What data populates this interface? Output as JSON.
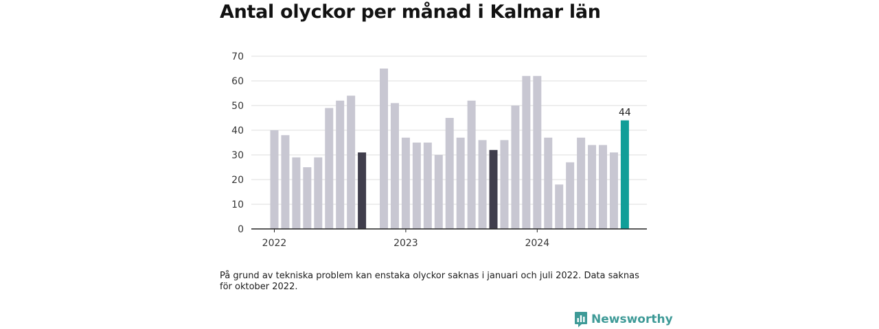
{
  "title": "Antal olyckor per månad i Kalmar län",
  "note": "På grund av tekniska problem kan enstaka olyckor saknas i januari och juli 2022. Data saknas för oktober 2022.",
  "brand": {
    "name": "Newsworthy",
    "icon": "newsworthy-logo-icon"
  },
  "colors": {
    "default": "#c8c7d2",
    "highlight": "#403e4c",
    "latest": "#119e98",
    "axis": "#222222",
    "grid": "#dcdcdc"
  },
  "chart_data": {
    "type": "bar",
    "title": "Antal olyckor per månad i Kalmar län",
    "xlabel": "",
    "ylabel": "",
    "ylim": [
      0,
      70
    ],
    "yticks": [
      0,
      10,
      20,
      30,
      40,
      50,
      60,
      70
    ],
    "xticks": [
      {
        "label": "2022",
        "date": "2022-01"
      },
      {
        "label": "2023",
        "date": "2023-01"
      },
      {
        "label": "2024",
        "date": "2024-01"
      }
    ],
    "grid": true,
    "data_labels": [
      {
        "date": "2024-09",
        "text": "44"
      }
    ],
    "points": [
      {
        "date": "2022-01",
        "value": 40,
        "style": "default"
      },
      {
        "date": "2022-02",
        "value": 38,
        "style": "default"
      },
      {
        "date": "2022-03",
        "value": 29,
        "style": "default"
      },
      {
        "date": "2022-04",
        "value": 25,
        "style": "default"
      },
      {
        "date": "2022-05",
        "value": 29,
        "style": "default"
      },
      {
        "date": "2022-06",
        "value": 49,
        "style": "default"
      },
      {
        "date": "2022-07",
        "value": 52,
        "style": "default"
      },
      {
        "date": "2022-08",
        "value": 54,
        "style": "default"
      },
      {
        "date": "2022-09",
        "value": 31,
        "style": "highlight"
      },
      {
        "date": "2022-10",
        "value": null,
        "style": "default"
      },
      {
        "date": "2022-11",
        "value": 65,
        "style": "default"
      },
      {
        "date": "2022-12",
        "value": 51,
        "style": "default"
      },
      {
        "date": "2023-01",
        "value": 37,
        "style": "default"
      },
      {
        "date": "2023-02",
        "value": 35,
        "style": "default"
      },
      {
        "date": "2023-03",
        "value": 35,
        "style": "default"
      },
      {
        "date": "2023-04",
        "value": 30,
        "style": "default"
      },
      {
        "date": "2023-05",
        "value": 45,
        "style": "default"
      },
      {
        "date": "2023-06",
        "value": 37,
        "style": "default"
      },
      {
        "date": "2023-07",
        "value": 52,
        "style": "default"
      },
      {
        "date": "2023-08",
        "value": 36,
        "style": "default"
      },
      {
        "date": "2023-09",
        "value": 32,
        "style": "highlight"
      },
      {
        "date": "2023-10",
        "value": 36,
        "style": "default"
      },
      {
        "date": "2023-11",
        "value": 50,
        "style": "default"
      },
      {
        "date": "2023-12",
        "value": 62,
        "style": "default"
      },
      {
        "date": "2024-01",
        "value": 62,
        "style": "default"
      },
      {
        "date": "2024-02",
        "value": 37,
        "style": "default"
      },
      {
        "date": "2024-03",
        "value": 18,
        "style": "default"
      },
      {
        "date": "2024-04",
        "value": 27,
        "style": "default"
      },
      {
        "date": "2024-05",
        "value": 37,
        "style": "default"
      },
      {
        "date": "2024-06",
        "value": 34,
        "style": "default"
      },
      {
        "date": "2024-07",
        "value": 34,
        "style": "default"
      },
      {
        "date": "2024-08",
        "value": 31,
        "style": "default"
      },
      {
        "date": "2024-09",
        "value": 44,
        "style": "latest"
      }
    ]
  }
}
